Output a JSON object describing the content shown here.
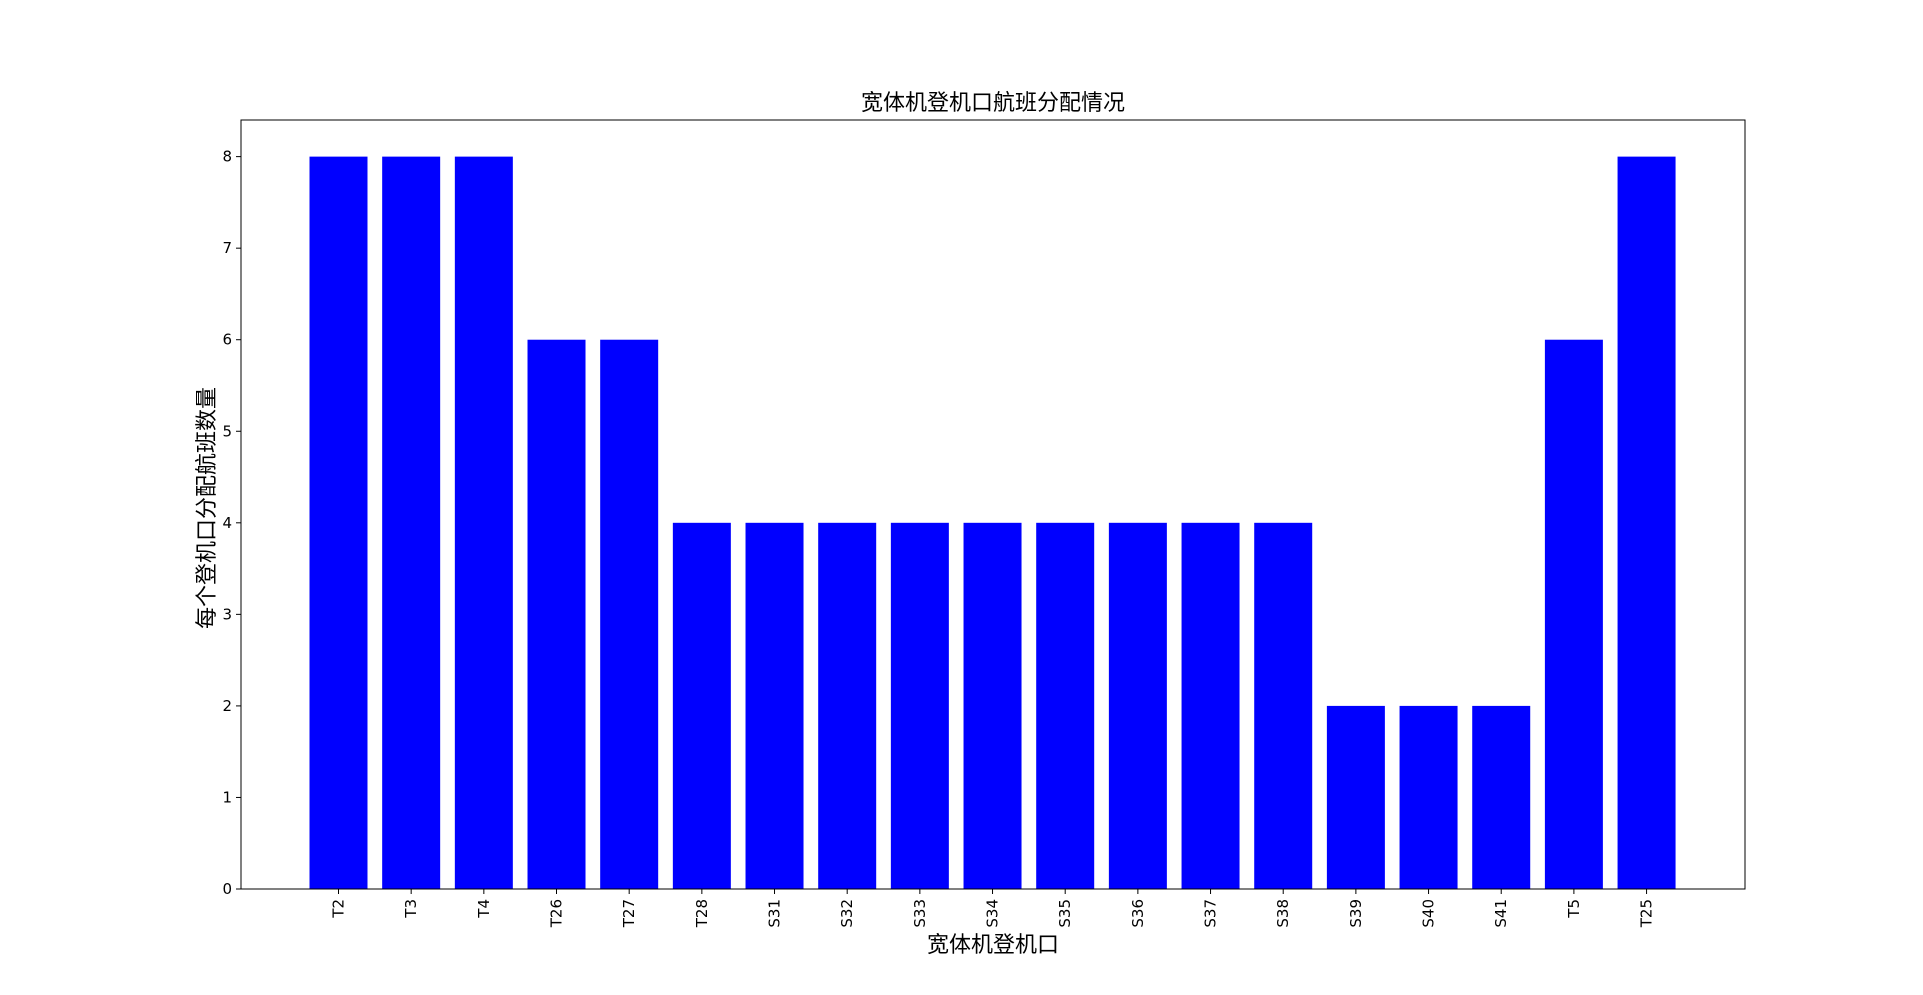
{
  "chart_data": {
    "type": "bar",
    "title": "宽体机登机口航班分配情况",
    "xlabel": "宽体机登机口",
    "ylabel": "每个登机口分配航班数量",
    "categories": [
      "T2",
      "T3",
      "T4",
      "T26",
      "T27",
      "T28",
      "S31",
      "S32",
      "S33",
      "S34",
      "S35",
      "S36",
      "S37",
      "S38",
      "S39",
      "S40",
      "S41",
      "T5",
      "T25"
    ],
    "values": [
      8,
      8,
      8,
      6,
      6,
      4,
      4,
      4,
      4,
      4,
      4,
      4,
      4,
      4,
      2,
      2,
      2,
      6,
      8
    ],
    "yticks": [
      "0",
      "1",
      "2",
      "3",
      "4",
      "5",
      "6",
      "7",
      "8"
    ],
    "ylim": [
      0,
      8.4
    ],
    "bar_color": "#0000ff",
    "grid": false,
    "legend": "none"
  }
}
